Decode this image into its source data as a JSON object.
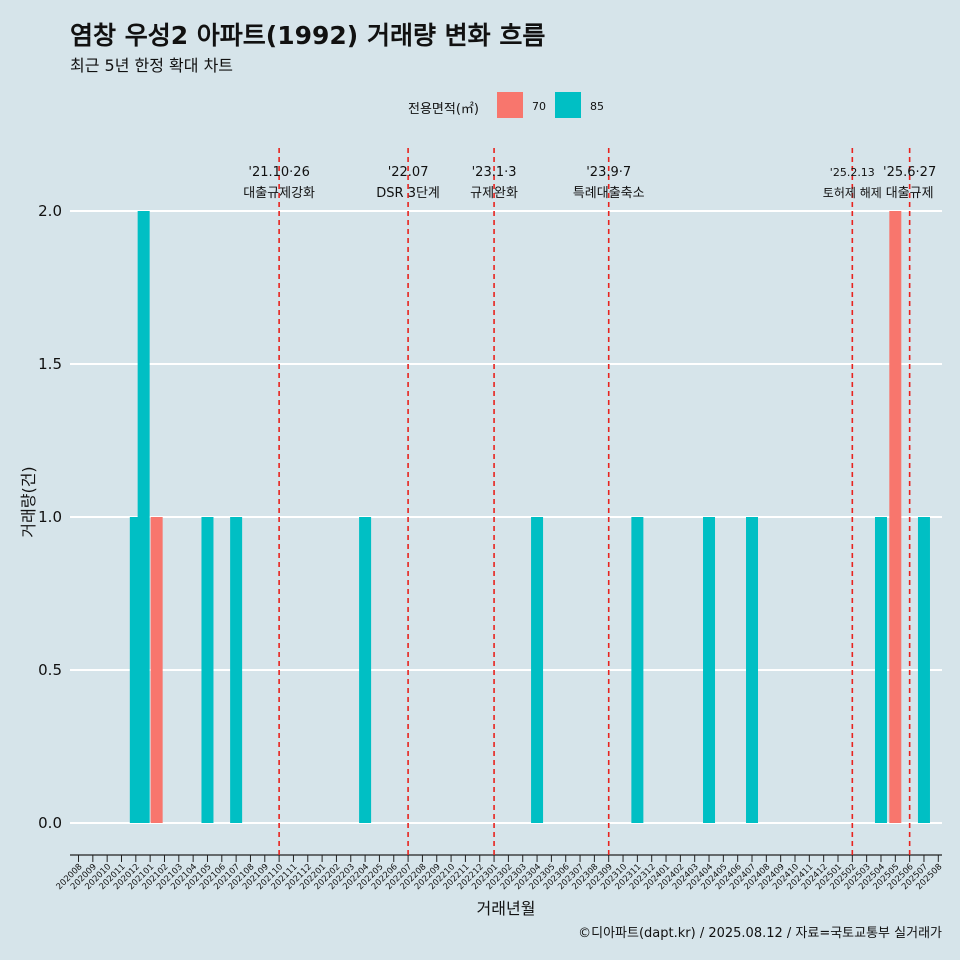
{
  "header": {
    "title": "염창 우성2 아파트(1992) 거래량 변화 흐름",
    "subtitle": "최근 5년 한정 확대 차트"
  },
  "legend": {
    "title": "전용면적(㎡)",
    "items": [
      {
        "label": "70",
        "color": "#f8766d"
      },
      {
        "label": "85",
        "color": "#00bfc4"
      }
    ]
  },
  "caption": "©디아파트(dapt.kr) / 2025.08.12 / 자료=국토교통부 실거래가",
  "chart_data": {
    "type": "bar",
    "xlabel": "거래년월",
    "ylabel": "거래량(건)",
    "ylim": [
      0,
      2
    ],
    "yticks": [
      "0.0",
      "0.5",
      "1.0",
      "1.5",
      "2.0"
    ],
    "grid": true,
    "legend_position": "top",
    "categories": [
      "202008",
      "202009",
      "202010",
      "202011",
      "202012",
      "202101",
      "202102",
      "202103",
      "202104",
      "202105",
      "202106",
      "202107",
      "202108",
      "202109",
      "202110",
      "202111",
      "202112",
      "202201",
      "202202",
      "202203",
      "202204",
      "202205",
      "202206",
      "202207",
      "202208",
      "202209",
      "202210",
      "202211",
      "202212",
      "202301",
      "202302",
      "202303",
      "202304",
      "202305",
      "202306",
      "202307",
      "202308",
      "202309",
      "202310",
      "202311",
      "202312",
      "202401",
      "202402",
      "202403",
      "202404",
      "202405",
      "202406",
      "202407",
      "202408",
      "202409",
      "202410",
      "202411",
      "202412",
      "202501",
      "202502",
      "202503",
      "202504",
      "202505",
      "202506",
      "202507",
      "202508"
    ],
    "series": [
      {
        "name": "70",
        "color": "#f8766d",
        "values": [
          0,
          0,
          0,
          0,
          0,
          1,
          0,
          0,
          0,
          0,
          0,
          0,
          0,
          0,
          0,
          0,
          0,
          0,
          0,
          0,
          0,
          0,
          0,
          0,
          0,
          0,
          0,
          0,
          0,
          0,
          0,
          0,
          0,
          0,
          0,
          0,
          0,
          0,
          0,
          0,
          0,
          0,
          0,
          0,
          0,
          0,
          0,
          0,
          0,
          0,
          0,
          0,
          0,
          0,
          0,
          0,
          0,
          2,
          0,
          0,
          0
        ]
      },
      {
        "name": "85",
        "color": "#00bfc4",
        "values": [
          0,
          0,
          0,
          0,
          1,
          2,
          0,
          0,
          0,
          1,
          0,
          1,
          0,
          0,
          0,
          0,
          0,
          0,
          0,
          0,
          1,
          0,
          0,
          0,
          0,
          0,
          0,
          0,
          0,
          0,
          0,
          0,
          1,
          0,
          0,
          0,
          0,
          0,
          0,
          1,
          0,
          0,
          0,
          0,
          1,
          0,
          0,
          1,
          0,
          0,
          0,
          0,
          0,
          0,
          0,
          0,
          1,
          0,
          0,
          1,
          0
        ]
      }
    ],
    "annotations": [
      {
        "date": "'21.10·26",
        "label": "대출규제강화",
        "category": "202110"
      },
      {
        "date": "'22.07",
        "label": "DSR 3단계",
        "category": "202207"
      },
      {
        "date": "'23.1·3",
        "label": "규제완화",
        "category": "202301"
      },
      {
        "date": "'23.9·7",
        "label": "특례대출축소",
        "category": "202309"
      },
      {
        "date": "'25.2.13",
        "label": "토허제 해제",
        "category": "202502"
      },
      {
        "date": "'25.6·27",
        "label": "대출규제",
        "category": "202506"
      }
    ],
    "reference_line_color": "#e8231e"
  }
}
